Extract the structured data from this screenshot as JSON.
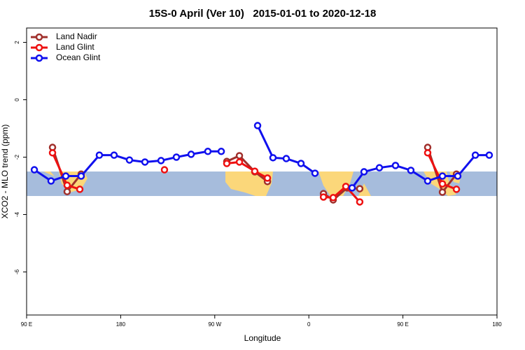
{
  "chart_data": {
    "type": "line",
    "title": "15S-0 April (Ver 10)   2015-01-01 to 2020-12-18",
    "x_label": "Longitude",
    "y_label": "XCO2 - MLO trend (ppm)",
    "xlim": [
      90,
      540
    ],
    "xticks": [
      {
        "value": 90,
        "label": "90 E"
      },
      180,
      {
        "value": 270,
        "label": "90 W"
      },
      {
        "value": 360,
        "label": "0"
      },
      {
        "value": 450,
        "label": "90 E"
      },
      {
        "value": 540,
        "label": "180"
      }
    ],
    "ylim": [
      -7.5,
      2.5
    ],
    "yticks": [
      -6,
      -4,
      -2,
      0,
      2
    ],
    "legend": "top-left",
    "series": [
      {
        "name": "Land Nadir",
        "color": "#a0302c",
        "x": [
          114.8,
          128.8,
          142.2,
          null,
          281.5,
          293.6,
          308.3,
          320.4,
          null,
          374,
          383.3,
          396.7,
          408.7,
          null,
          473.7,
          487.8,
          501.2
        ],
        "values": [
          -1.66,
          -3.2,
          -2.59,
          null,
          -2.15,
          -1.95,
          -2.51,
          -2.85,
          null,
          -3.27,
          -3.49,
          -3.07,
          -3.1,
          null,
          -1.66,
          -3.22,
          -2.59
        ]
      },
      {
        "name": "Land Glint",
        "color": "#ee1111",
        "x": [
          114.8,
          128.8,
          140.9,
          null,
          221.9,
          null,
          281.5,
          293.6,
          308.3,
          320.4,
          null,
          374,
          383.3,
          395.4,
          408.7,
          null,
          473.7,
          487.8,
          501.2
        ],
        "values": [
          -1.85,
          -2.98,
          -3.12,
          null,
          -2.44,
          null,
          -2.22,
          -2.17,
          -2.49,
          -2.73,
          null,
          -3.39,
          -3.41,
          -3.02,
          -3.56,
          null,
          -1.85,
          -2.93,
          -3.12
        ]
      },
      {
        "name": "Ocean Glint",
        "color": "#1010ee",
        "x": [
          97.4,
          113.4,
          127.5,
          142.2,
          159.6,
          173.7,
          188.4,
          203.2,
          218.6,
          233.3,
          247.4,
          263.4,
          276.2,
          null,
          311,
          325.7,
          338.4,
          352.5,
          365.9,
          null,
          401.4,
          412.8,
          427.5,
          442.9,
          457.6,
          473.7,
          487.8,
          502.5,
          519.3,
          532.6
        ],
        "values": [
          -2.44,
          -2.83,
          -2.66,
          -2.66,
          -1.93,
          -1.93,
          -2.1,
          -2.17,
          -2.12,
          -2.0,
          -1.9,
          -1.8,
          -1.8,
          null,
          -0.9,
          -2.02,
          -2.05,
          -2.22,
          -2.56,
          null,
          -3.07,
          -2.51,
          -2.37,
          -2.29,
          -2.46,
          -2.83,
          -2.66,
          -2.66,
          -1.93,
          -1.93
        ]
      }
    ]
  }
}
